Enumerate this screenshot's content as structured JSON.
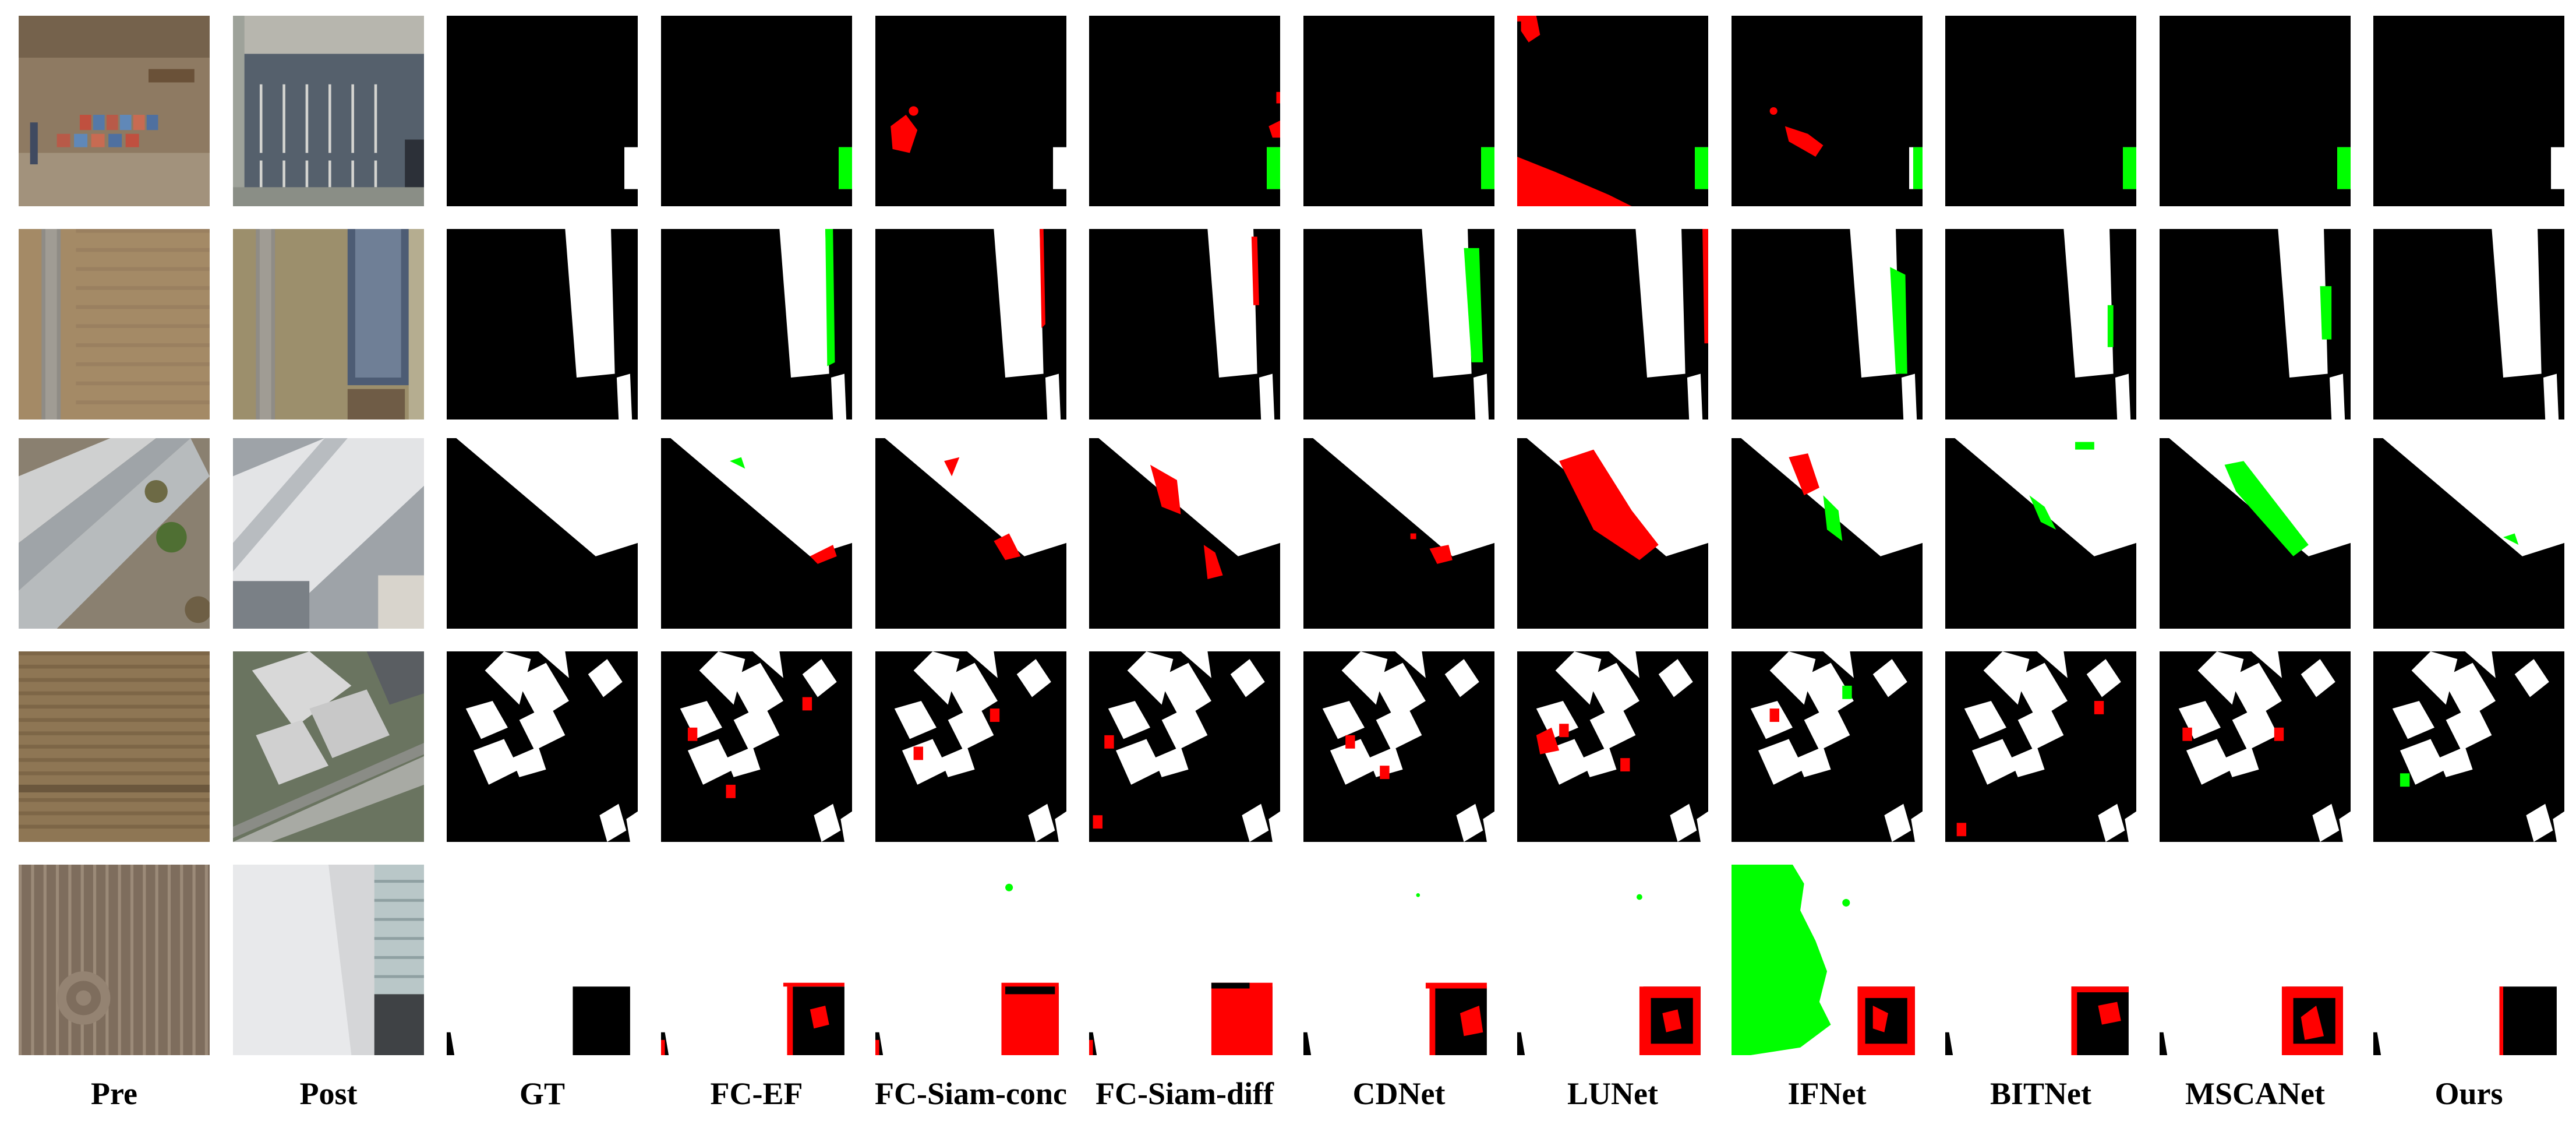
{
  "figure": {
    "columns": [
      {
        "label": "Pre"
      },
      {
        "label": "Post"
      },
      {
        "label": "GT"
      },
      {
        "label": "FC-EF"
      },
      {
        "label": "FC-Siam-conc"
      },
      {
        "label": "FC-Siam-diff"
      },
      {
        "label": "CDNet"
      },
      {
        "label": "LUNet"
      },
      {
        "label": "IFNet"
      },
      {
        "label": "BITNet"
      },
      {
        "label": "MSCANet"
      },
      {
        "label": "Ours"
      }
    ],
    "row_count": 5,
    "colors": {
      "background": "#000000",
      "true_positive": "#ffffff",
      "false_positive": "#ff0000",
      "false_negative": "#00ff00"
    }
  }
}
